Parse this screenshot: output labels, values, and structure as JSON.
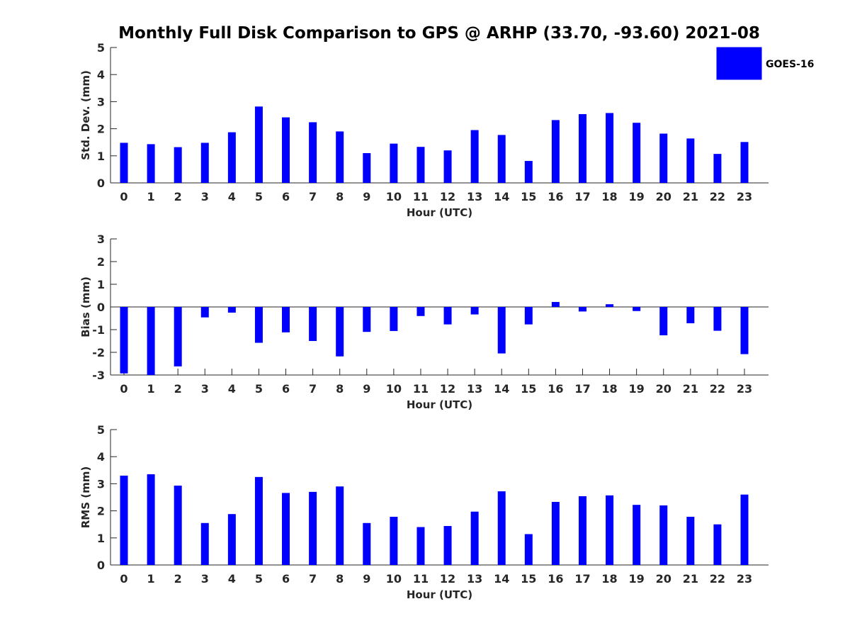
{
  "title": "Monthly Full Disk Comparison to GPS @ ARHP (33.70, -93.60) 2021-08",
  "legend": {
    "label": "GOES-16",
    "position": "top-right"
  },
  "colors": {
    "bar": "#0000ff",
    "axis": "#262626"
  },
  "chart_data": [
    {
      "type": "bar",
      "xlabel": "Hour (UTC)",
      "ylabel": "Std. Dev. (mm)",
      "ylim": [
        0,
        5
      ],
      "yticks": [
        0,
        1,
        2,
        3,
        4,
        5
      ],
      "categories": [
        0,
        1,
        2,
        3,
        4,
        5,
        6,
        7,
        8,
        9,
        10,
        11,
        12,
        13,
        14,
        15,
        16,
        17,
        18,
        19,
        20,
        21,
        22,
        23
      ],
      "series": [
        {
          "name": "GOES-16",
          "values": [
            1.48,
            1.43,
            1.32,
            1.48,
            1.87,
            2.82,
            2.42,
            2.24,
            1.9,
            1.1,
            1.45,
            1.33,
            1.2,
            1.95,
            1.77,
            0.81,
            2.32,
            2.54,
            2.58,
            2.22,
            1.82,
            1.64,
            1.07,
            1.51
          ]
        }
      ]
    },
    {
      "type": "bar",
      "xlabel": "Hour (UTC)",
      "ylabel": "Bias (mm)",
      "ylim": [
        -3,
        3
      ],
      "yticks": [
        -3,
        -2,
        -1,
        0,
        1,
        2,
        3
      ],
      "categories": [
        0,
        1,
        2,
        3,
        4,
        5,
        6,
        7,
        8,
        9,
        10,
        11,
        12,
        13,
        14,
        15,
        16,
        17,
        18,
        19,
        20,
        21,
        22,
        23
      ],
      "series": [
        {
          "name": "GOES-16",
          "values": [
            -2.93,
            -3.0,
            -2.62,
            -0.46,
            -0.25,
            -1.58,
            -1.12,
            -1.5,
            -2.18,
            -1.1,
            -1.06,
            -0.4,
            -0.77,
            -0.33,
            -2.05,
            -0.77,
            0.22,
            -0.2,
            0.12,
            -0.18,
            -1.25,
            -0.72,
            -1.05,
            -2.08
          ]
        }
      ]
    },
    {
      "type": "bar",
      "xlabel": "Hour (UTC)",
      "ylabel": "RMS (mm)",
      "ylim": [
        0,
        5
      ],
      "yticks": [
        0,
        1,
        2,
        3,
        4,
        5
      ],
      "categories": [
        0,
        1,
        2,
        3,
        4,
        5,
        6,
        7,
        8,
        9,
        10,
        11,
        12,
        13,
        14,
        15,
        16,
        17,
        18,
        19,
        20,
        21,
        22,
        23
      ],
      "series": [
        {
          "name": "GOES-16",
          "values": [
            3.3,
            3.35,
            2.93,
            1.55,
            1.88,
            3.25,
            2.66,
            2.7,
            2.9,
            1.55,
            1.78,
            1.4,
            1.44,
            1.97,
            2.72,
            1.14,
            2.33,
            2.54,
            2.57,
            2.22,
            2.2,
            1.78,
            1.5,
            2.6
          ]
        }
      ]
    }
  ]
}
